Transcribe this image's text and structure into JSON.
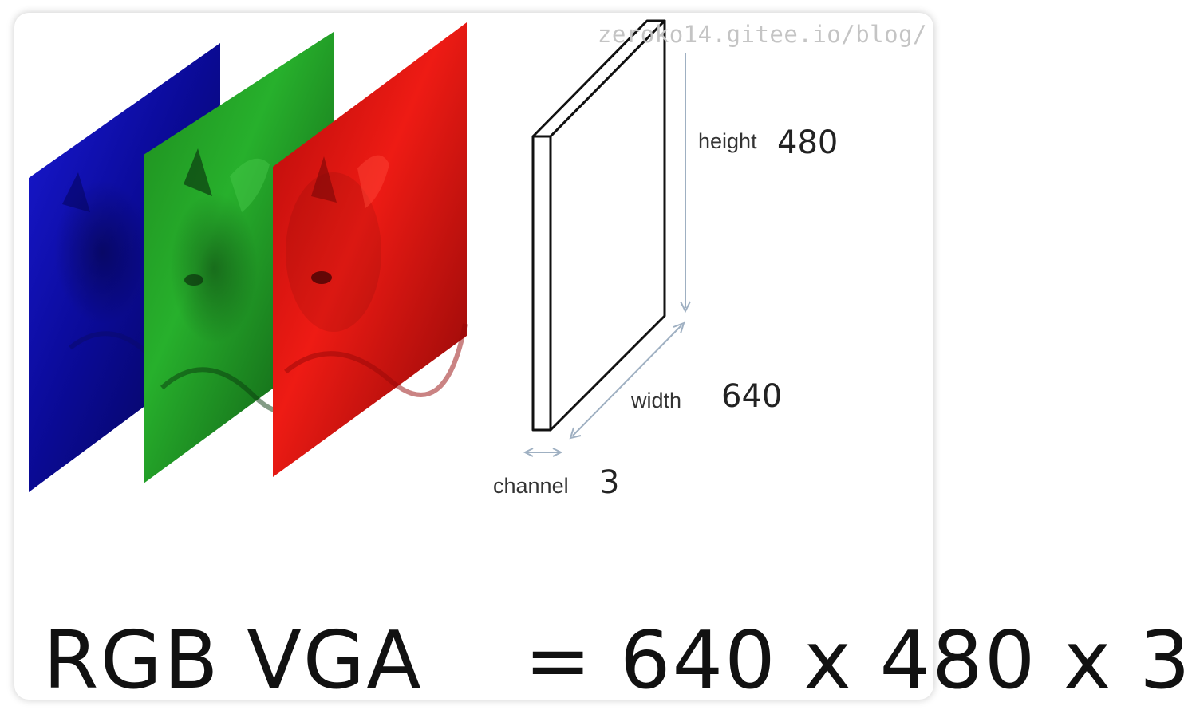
{
  "watermark": "zeroko14.gitee.io/blog/",
  "labels": {
    "height_word": "height",
    "height_value": "480",
    "width_word": "width",
    "width_value": "640",
    "channel_word": "channel",
    "channel_value": "3"
  },
  "formula": {
    "lhs": "RGB VGA",
    "rhs": "= 640 x 480 x 3"
  },
  "colors": {
    "blue_channel": "#0b0b9a",
    "green_channel": "#27b02c",
    "red_channel": "#ee1b14",
    "arrow": "#9fb0c2"
  }
}
